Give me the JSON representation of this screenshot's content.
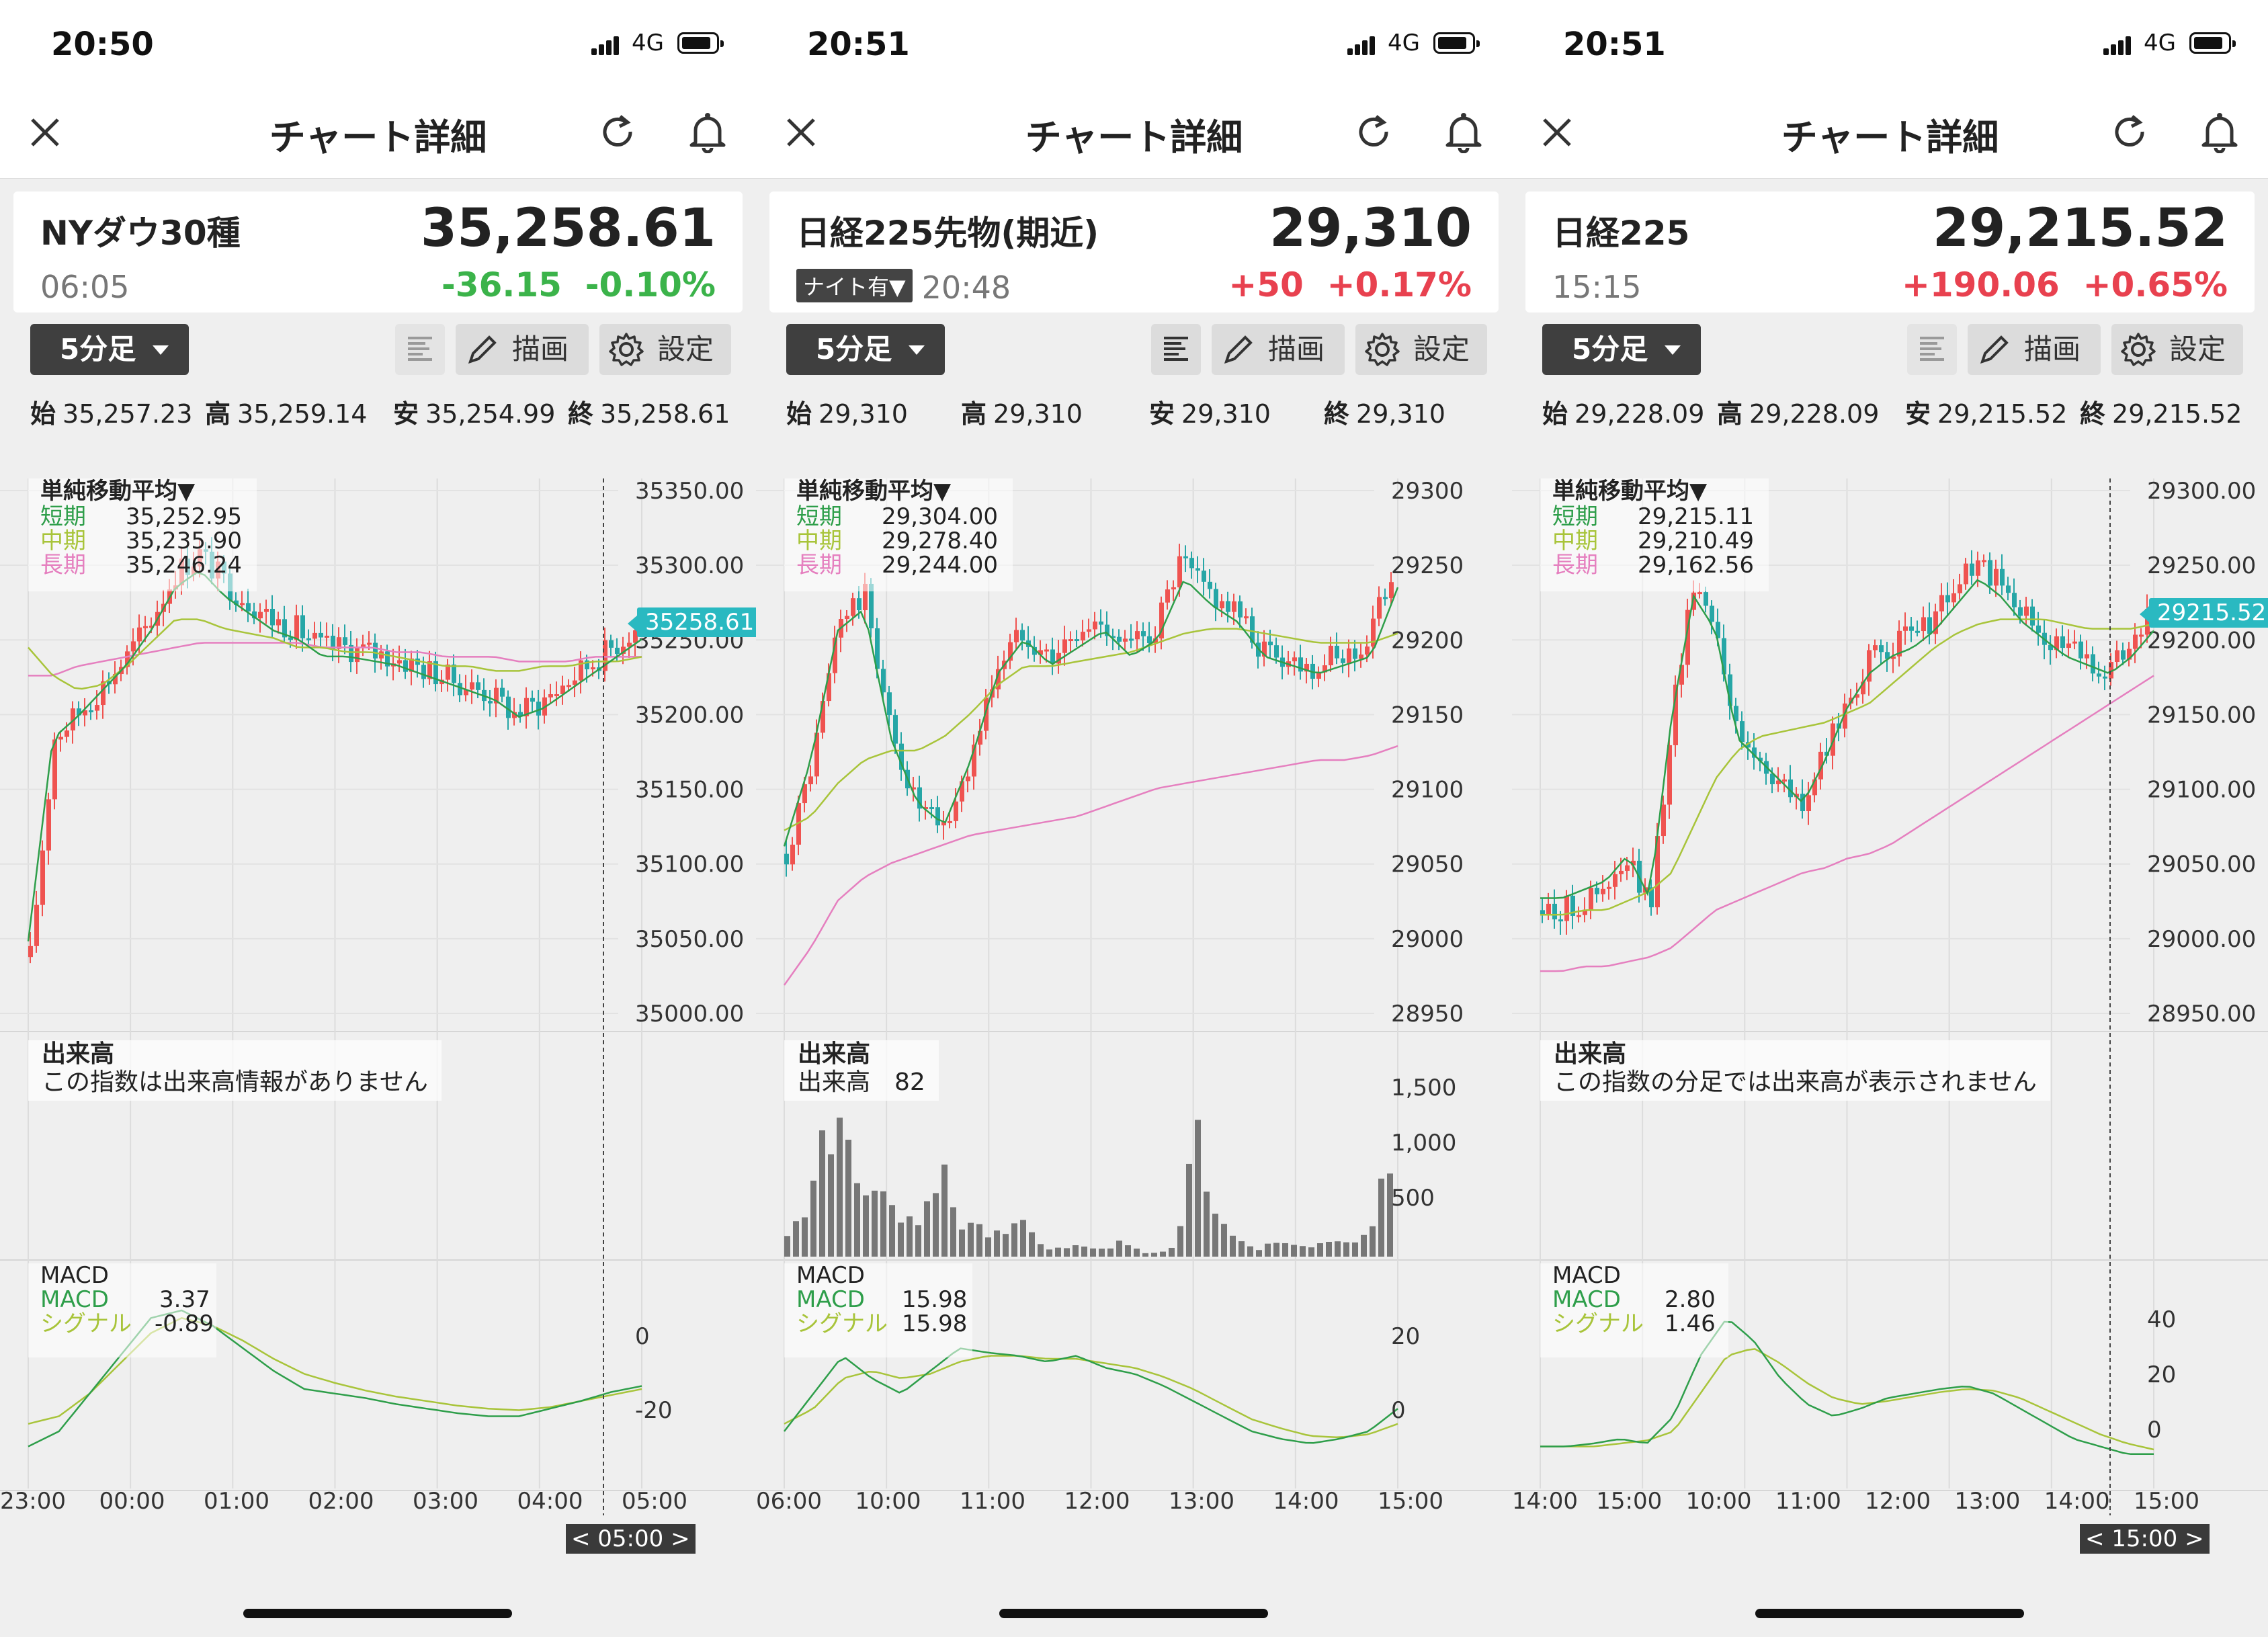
{
  "panels": [
    {
      "time": "20:50",
      "network": "4G",
      "nav_title": "チャート詳細",
      "name": "NYダウ30種",
      "price": "35,258.61",
      "quote_time": "06:05",
      "night": "",
      "change": "-36.15",
      "change_pct": "-0.10%",
      "direction": "down",
      "timeframe": "5分足",
      "draw_label": "描画",
      "settings_label": "設定",
      "ohlc": {
        "open_l": "始",
        "open": "35,257.23",
        "high_l": "高",
        "high": "35,259.14",
        "low_l": "安",
        "low": "35,254.99",
        "close_l": "終",
        "close": "35,258.61"
      },
      "ma": {
        "title": "単純移動平均▼",
        "short_l": "短期",
        "short": "35,252.95",
        "mid_l": "中期",
        "mid": "35,235.90",
        "long_l": "長期",
        "long": "35,246.24"
      },
      "volume_title": "出来高",
      "volume_text": "この指数は出来高情報がありません",
      "macd": {
        "title": "MACD",
        "macd_l": "MACD",
        "macd": "3.37",
        "signal_l": "シグナル",
        "signal": "-0.89"
      },
      "y_labels": [
        "35350.00",
        "35300.00",
        "35250.00",
        "35200.00",
        "35150.00",
        "35100.00",
        "35050.00",
        "35000.00"
      ],
      "current_tag": "35258.61",
      "vol_labels": [],
      "macd_labels": [
        "0",
        "-20"
      ],
      "x_labels": [
        "23:00",
        "00:00",
        "01:00",
        "02:00",
        "03:00",
        "04:00",
        "05:00"
      ],
      "time_tag": "< 05:00 >",
      "colors": {
        "short": "#2e9e4a",
        "mid": "#a8c43a",
        "long": "#e57fbf",
        "up": "#ef5350",
        "down": "#26a6a6"
      }
    },
    {
      "time": "20:51",
      "network": "4G",
      "nav_title": "チャート詳細",
      "name": "日経225先物(期近)",
      "price": "29,310",
      "quote_time": "20:48",
      "night": "ナイト有▼",
      "change": "+50",
      "change_pct": "+0.17%",
      "direction": "up",
      "timeframe": "5分足",
      "draw_label": "描画",
      "settings_label": "設定",
      "ohlc": {
        "open_l": "始",
        "open": "29,310",
        "high_l": "高",
        "high": "29,310",
        "low_l": "安",
        "low": "29,310",
        "close_l": "終",
        "close": "29,310"
      },
      "ma": {
        "title": "単純移動平均▼",
        "short_l": "短期",
        "short": "29,304.00",
        "mid_l": "中期",
        "mid": "29,278.40",
        "long_l": "長期",
        "long": "29,244.00"
      },
      "volume_title": "出来高",
      "volume_text": "出来高　82",
      "macd": {
        "title": "MACD",
        "macd_l": "MACD",
        "macd": "15.98",
        "signal_l": "シグナル",
        "signal": "15.98"
      },
      "y_labels": [
        "29300",
        "29250",
        "29200",
        "29150",
        "29100",
        "29050",
        "29000",
        "28950"
      ],
      "current_tag": "",
      "vol_labels": [
        "1,500",
        "1,000",
        "500"
      ],
      "macd_labels": [
        "20",
        "0"
      ],
      "x_labels": [
        "06:00",
        "10:00",
        "11:00",
        "12:00",
        "13:00",
        "14:00",
        "15:00"
      ],
      "time_tag": "",
      "colors": {
        "short": "#2e9e4a",
        "mid": "#a8c43a",
        "long": "#e57fbf",
        "up": "#ef5350",
        "down": "#26a6a6"
      }
    },
    {
      "time": "20:51",
      "network": "4G",
      "nav_title": "チャート詳細",
      "name": "日経225",
      "price": "29,215.52",
      "quote_time": "15:15",
      "night": "",
      "change": "+190.06",
      "change_pct": "+0.65%",
      "direction": "up",
      "timeframe": "5分足",
      "draw_label": "描画",
      "settings_label": "設定",
      "ohlc": {
        "open_l": "始",
        "open": "29,228.09",
        "high_l": "高",
        "high": "29,228.09",
        "low_l": "安",
        "low": "29,215.52",
        "close_l": "終",
        "close": "29,215.52"
      },
      "ma": {
        "title": "単純移動平均▼",
        "short_l": "短期",
        "short": "29,215.11",
        "mid_l": "中期",
        "mid": "29,210.49",
        "long_l": "長期",
        "long": "29,162.56"
      },
      "volume_title": "出来高",
      "volume_text": "この指数の分足では出来高が表示されません",
      "macd": {
        "title": "MACD",
        "macd_l": "MACD",
        "macd": "2.80",
        "signal_l": "シグナル",
        "signal": "1.46"
      },
      "y_labels": [
        "29300.00",
        "29250.00",
        "29200.00",
        "29150.00",
        "29100.00",
        "29050.00",
        "29000.00",
        "28950.00"
      ],
      "current_tag": "29215.52",
      "vol_labels": [],
      "macd_labels": [
        "40",
        "20",
        "0"
      ],
      "x_labels": [
        "14:00",
        "15:00",
        "10:00",
        "11:00",
        "12:00",
        "13:00",
        "14:00",
        "15:00"
      ],
      "time_tag": "< 15:00 >",
      "colors": {
        "short": "#2e9e4a",
        "mid": "#a8c43a",
        "long": "#e57fbf",
        "up": "#ef5350",
        "down": "#26a6a6"
      }
    }
  ]
}
